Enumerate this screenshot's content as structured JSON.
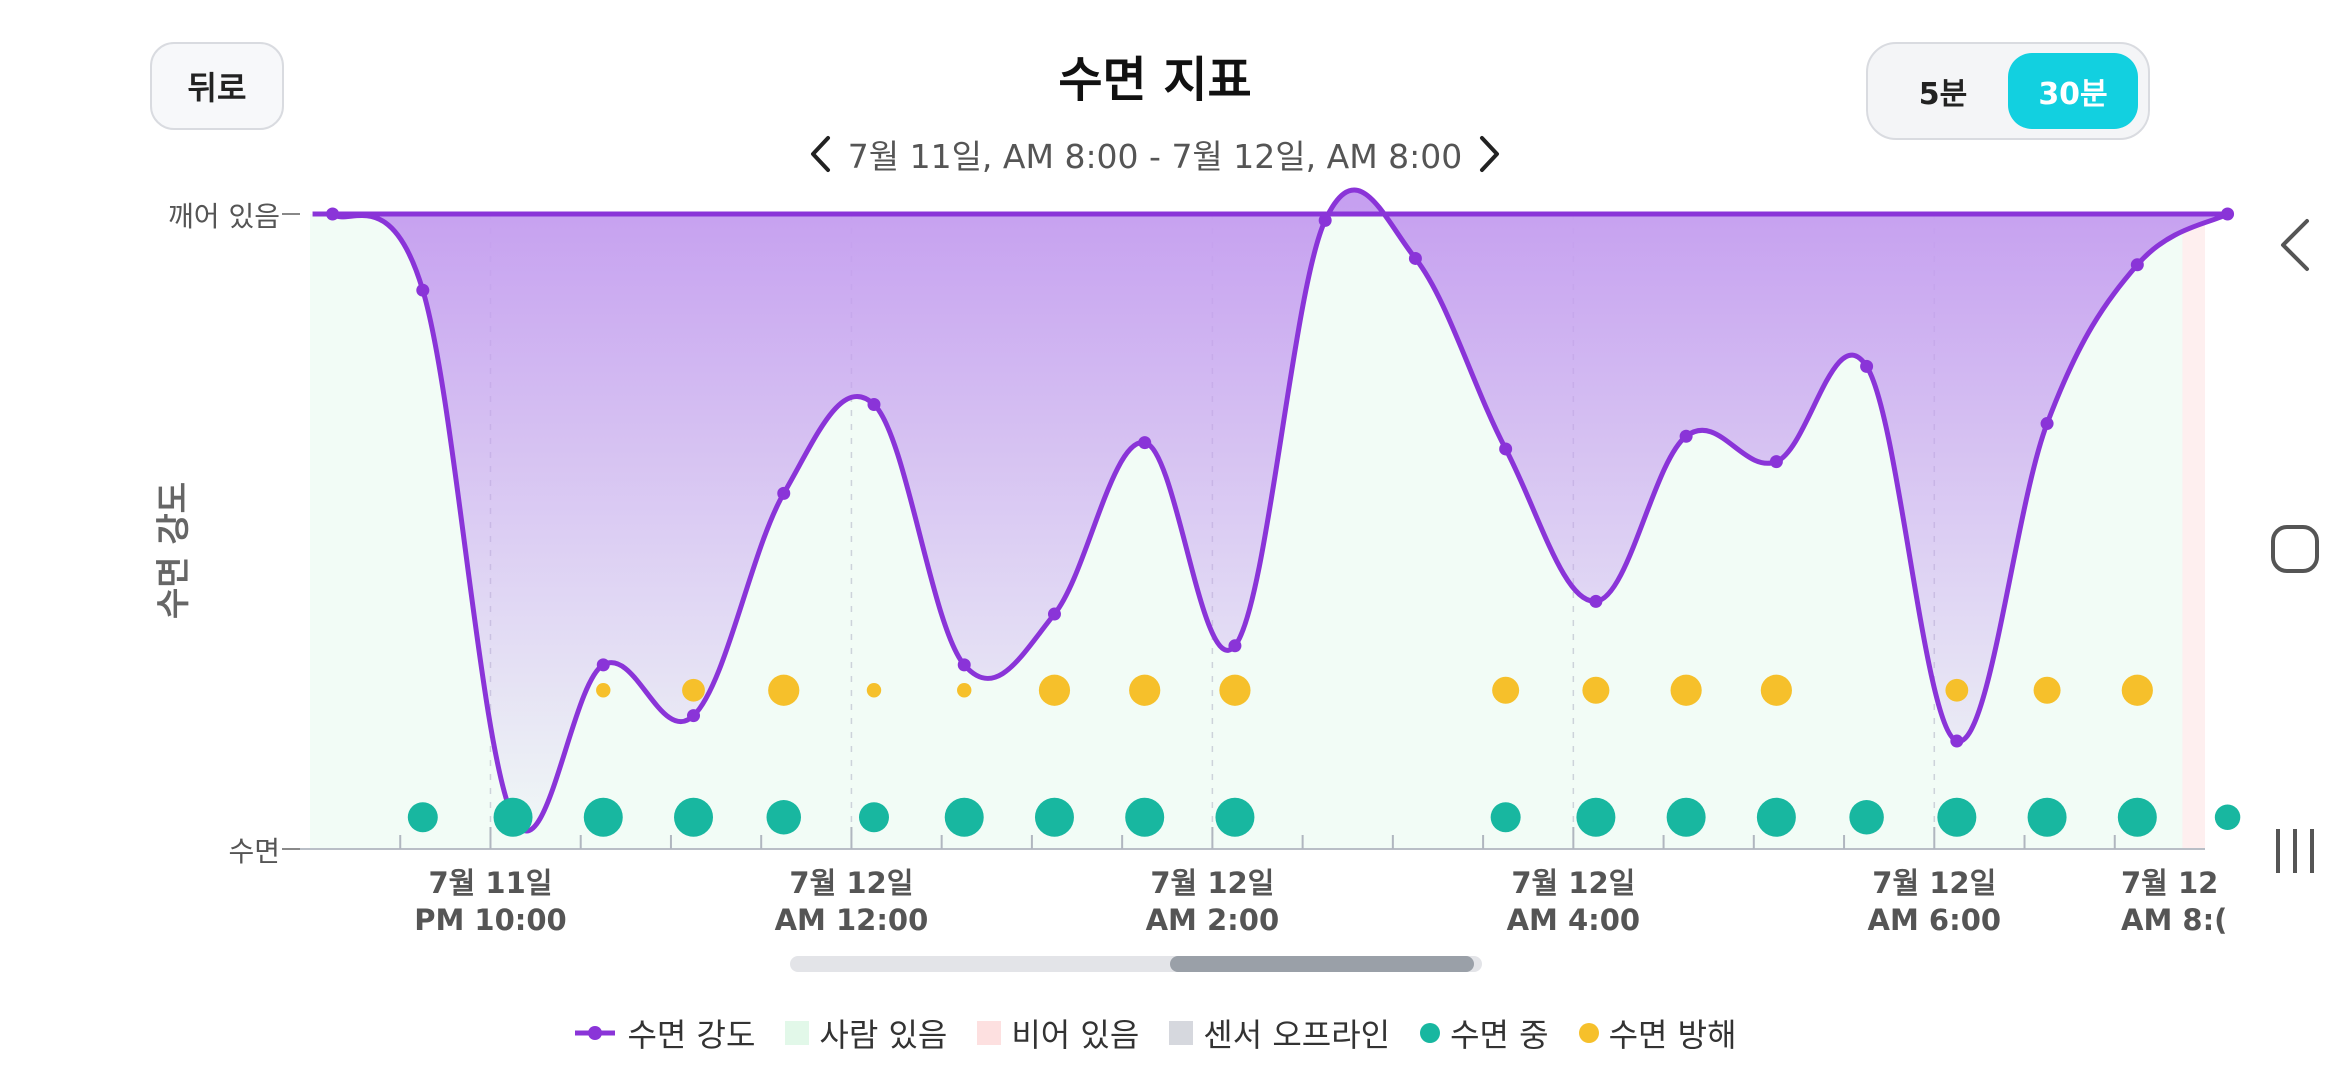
{
  "header": {
    "back_label": "뒤로",
    "title": "수면 지표",
    "date_range": "7월 11일, AM 8:00 - 7월 12일, AM 8:00",
    "prev_icon": "chevron-left-icon",
    "next_icon": "chevron-right-icon",
    "interval_options": [
      {
        "label": "5분",
        "selected": false
      },
      {
        "label": "30분",
        "selected": true
      }
    ]
  },
  "colors": {
    "sleep_intensity": "#8a34d8",
    "person_present": "#e8f9ee",
    "empty": "#fde4e4",
    "sensor_offline": "#d6d8de",
    "sleeping": "#18b7a0",
    "sleep_disturbance": "#f6c02b",
    "accent": "#12d0e0"
  },
  "chart_data": {
    "type": "line",
    "ylabel": "수면 강도",
    "y_top_label": "깨어 있음",
    "y_bottom_label": "수면",
    "ylim": [
      0,
      100
    ],
    "x_tick_labels": [
      [
        "7월 11일",
        "PM 10:00"
      ],
      [
        "7월 12일",
        "AM 12:00"
      ],
      [
        "7월 12일",
        "AM 2:00"
      ],
      [
        "7월 12일",
        "AM 4:00"
      ],
      [
        "7월 12일",
        "AM 6:00"
      ],
      [
        "7월 12",
        "AM 8:("
      ]
    ],
    "x_tick_times": [
      21.0,
      23.0,
      25.0,
      27.0,
      29.0,
      30.5
    ],
    "xlim": [
      20.0,
      30.5
    ],
    "series": [
      {
        "name": "수면 강도",
        "x": [
          20.125,
          20.625,
          21.125,
          21.625,
          22.125,
          22.625,
          23.125,
          23.625,
          24.125,
          24.625,
          25.125,
          25.625,
          26.125,
          26.625,
          27.125,
          27.625,
          28.125,
          28.625,
          29.125,
          29.625,
          30.125,
          30.625
        ],
        "y": [
          100,
          88,
          5,
          29,
          21,
          56,
          70,
          29,
          37,
          64,
          32,
          99,
          93,
          63,
          39,
          65,
          61,
          76,
          17,
          67,
          92,
          100
        ]
      }
    ],
    "presence": {
      "person_present_from": 20.0,
      "empty_from": 30.375
    },
    "sleeping_markers": {
      "x": [
        20.625,
        21.125,
        21.625,
        22.125,
        22.625,
        23.125,
        23.625,
        24.125,
        24.625,
        25.125,
        26.625,
        27.125,
        27.625,
        28.125,
        28.625,
        29.125,
        29.625,
        30.125,
        30.625
      ],
      "size": [
        2,
        3,
        3,
        3,
        2.5,
        2,
        3,
        3,
        3,
        3,
        2,
        3,
        3,
        3,
        2.5,
        3,
        3,
        3,
        1.5
      ]
    },
    "disturbance_markers": {
      "x": [
        21.625,
        22.125,
        22.625,
        23.125,
        23.625,
        24.125,
        24.625,
        25.125,
        26.625,
        27.125,
        27.625,
        28.125,
        29.125,
        29.625,
        30.125
      ],
      "size": [
        1,
        2,
        3,
        1,
        1,
        3,
        3,
        3,
        2.5,
        2.5,
        3,
        3,
        2,
        2.5,
        3
      ]
    }
  },
  "legend": [
    {
      "label": "수면 강도",
      "kind": "line",
      "color": "#8a34d8"
    },
    {
      "label": "사람 있음",
      "kind": "square",
      "color": "#e2f8e9"
    },
    {
      "label": "비어 있음",
      "kind": "square",
      "color": "#fde0e0"
    },
    {
      "label": "센서 오프라인",
      "kind": "square",
      "color": "#d6d8de"
    },
    {
      "label": "수면 중",
      "kind": "dot",
      "color": "#18b7a0"
    },
    {
      "label": "수면 방해",
      "kind": "dot",
      "color": "#f6c02b"
    }
  ],
  "system_nav": [
    "back-nav-icon",
    "home-nav-icon",
    "recents-nav-icon"
  ]
}
